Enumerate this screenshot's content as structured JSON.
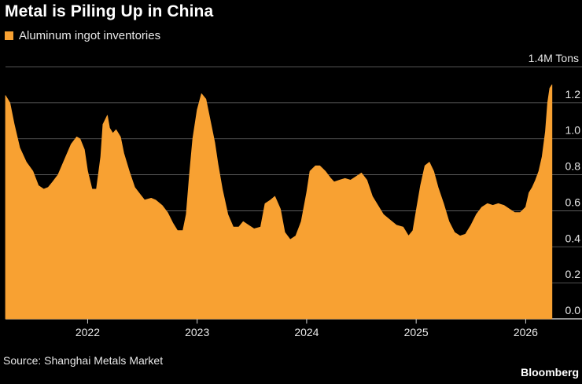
{
  "title": "Metal is Piling Up in China",
  "legend": {
    "label": "Aluminum ingot inventories",
    "color": "#f8a132"
  },
  "units": "1.4M Tons",
  "source": "Source: Shanghai Metals Market",
  "brand": "Bloomberg",
  "chart_data": {
    "type": "area",
    "title": "Metal is Piling Up in China",
    "ylabel": "1.4M Tons",
    "ylim": [
      0,
      1.4
    ],
    "yticks": [
      "1.2",
      "1.0",
      "0.8",
      "0.6",
      "0.4",
      "0.2",
      "0.0"
    ],
    "ytick_values": [
      1.2,
      1.0,
      0.8,
      0.6,
      0.4,
      0.2,
      0.0
    ],
    "xlim": [
      2021.25,
      2026.27
    ],
    "xticks": [
      "2022",
      "2023",
      "2024",
      "2025",
      "2026"
    ],
    "xtick_values": [
      2022,
      2023,
      2024,
      2025,
      2026
    ],
    "grid": true,
    "series": [
      {
        "name": "Aluminum ingot inventories",
        "color": "#f8a132",
        "x": [
          2021.25,
          2021.29,
          2021.33,
          2021.38,
          2021.44,
          2021.5,
          2021.55,
          2021.6,
          2021.64,
          2021.68,
          2021.73,
          2021.8,
          2021.85,
          2021.9,
          2021.93,
          2021.97,
          2022.0,
          2022.04,
          2022.08,
          2022.12,
          2022.14,
          2022.18,
          2022.2,
          2022.23,
          2022.26,
          2022.3,
          2022.33,
          2022.38,
          2022.43,
          2022.48,
          2022.52,
          2022.58,
          2022.62,
          2022.68,
          2022.73,
          2022.78,
          2022.82,
          2022.87,
          2022.9,
          2022.93,
          2022.96,
          2023.0,
          2023.04,
          2023.08,
          2023.12,
          2023.16,
          2023.19,
          2023.23,
          2023.28,
          2023.33,
          2023.38,
          2023.42,
          2023.47,
          2023.52,
          2023.58,
          2023.62,
          2023.67,
          2023.71,
          2023.76,
          2023.8,
          2023.85,
          2023.9,
          2023.95,
          2024.0,
          2024.03,
          2024.08,
          2024.12,
          2024.17,
          2024.22,
          2024.25,
          2024.3,
          2024.35,
          2024.4,
          2024.45,
          2024.5,
          2024.55,
          2024.6,
          2024.65,
          2024.7,
          2024.76,
          2024.82,
          2024.88,
          2024.93,
          2024.97,
          2025.0,
          2025.04,
          2025.08,
          2025.12,
          2025.16,
          2025.2,
          2025.25,
          2025.3,
          2025.35,
          2025.4,
          2025.45,
          2025.5,
          2025.55,
          2025.6,
          2025.65,
          2025.7,
          2025.75,
          2025.8,
          2025.85,
          2025.9,
          2025.95,
          2026.0,
          2026.03,
          2026.06,
          2026.09,
          2026.12,
          2026.15,
          2026.18,
          2026.2,
          2026.22,
          2026.24
        ],
        "values": [
          1.24,
          1.2,
          1.08,
          0.95,
          0.87,
          0.82,
          0.74,
          0.72,
          0.73,
          0.76,
          0.8,
          0.9,
          0.97,
          1.01,
          1.0,
          0.94,
          0.82,
          0.72,
          0.72,
          0.9,
          1.08,
          1.13,
          1.06,
          1.03,
          1.05,
          1.01,
          0.92,
          0.82,
          0.73,
          0.69,
          0.66,
          0.67,
          0.66,
          0.63,
          0.59,
          0.53,
          0.49,
          0.49,
          0.58,
          0.8,
          1.0,
          1.16,
          1.25,
          1.22,
          1.1,
          0.98,
          0.86,
          0.72,
          0.58,
          0.51,
          0.51,
          0.54,
          0.52,
          0.5,
          0.51,
          0.64,
          0.66,
          0.68,
          0.61,
          0.48,
          0.44,
          0.46,
          0.54,
          0.7,
          0.82,
          0.85,
          0.85,
          0.82,
          0.78,
          0.76,
          0.77,
          0.78,
          0.77,
          0.79,
          0.81,
          0.77,
          0.68,
          0.63,
          0.58,
          0.55,
          0.52,
          0.51,
          0.46,
          0.49,
          0.6,
          0.74,
          0.85,
          0.87,
          0.82,
          0.73,
          0.64,
          0.54,
          0.48,
          0.46,
          0.47,
          0.52,
          0.58,
          0.62,
          0.64,
          0.63,
          0.64,
          0.63,
          0.61,
          0.59,
          0.59,
          0.62,
          0.7,
          0.73,
          0.77,
          0.82,
          0.9,
          1.04,
          1.2,
          1.28,
          1.3
        ]
      }
    ]
  }
}
